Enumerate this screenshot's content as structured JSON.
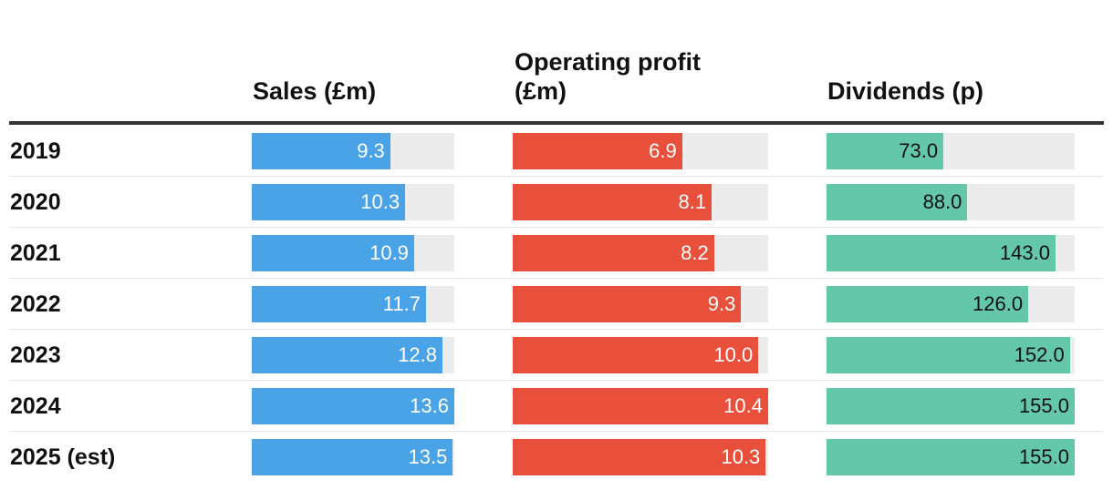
{
  "chart_data": {
    "type": "table",
    "title": "",
    "categories": [
      "2019",
      "2020",
      "2021",
      "2022",
      "2023",
      "2024",
      "2025 (est)"
    ],
    "series": [
      {
        "key": "sales",
        "name": "Sales (£m)",
        "values": [
          9.3,
          10.3,
          10.9,
          11.7,
          12.8,
          13.6,
          13.5
        ],
        "max": 13.6,
        "color": "#4aa3e6",
        "label_color": "#ffffff"
      },
      {
        "key": "op",
        "name": "Operating profit (£m)",
        "name_lines": [
          "Operating profit",
          "(£m)"
        ],
        "values": [
          6.9,
          8.1,
          8.2,
          9.3,
          10.0,
          10.4,
          10.3
        ],
        "max": 10.4,
        "color": "#e8503b",
        "label_color": "#ffffff"
      },
      {
        "key": "div",
        "name": "Dividends (p)",
        "values": [
          73.0,
          88.0,
          143.0,
          126.0,
          152.0,
          155.0,
          155.0
        ],
        "max": 155.0,
        "color": "#64c7a9",
        "label_color": "#111111"
      }
    ],
    "track_color": "#ececec"
  }
}
